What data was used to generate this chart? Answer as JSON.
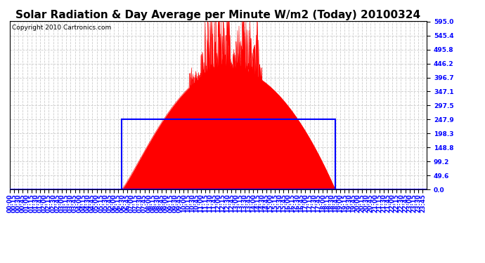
{
  "title": "Solar Radiation & Day Average per Minute W/m2 (Today) 20100324",
  "copyright": "Copyright 2010 Cartronics.com",
  "bg_color": "#ffffff",
  "plot_bg_color": "#ffffff",
  "grid_color": "#aaaaaa",
  "fill_color": "#ff0000",
  "line_color": "#ff0000",
  "blue_rect_color": "#0000ff",
  "yticks": [
    0.0,
    49.6,
    99.2,
    148.8,
    198.3,
    247.9,
    297.5,
    347.1,
    396.7,
    446.2,
    495.8,
    545.4,
    595.0
  ],
  "ymax": 595.0,
  "ymin": 0.0,
  "day_average": 247.9,
  "sunrise_idx": 386,
  "sunset_idx": 1123,
  "total_minutes": 1439,
  "title_fontsize": 11,
  "axis_fontsize": 6.5,
  "copyright_fontsize": 6.5
}
